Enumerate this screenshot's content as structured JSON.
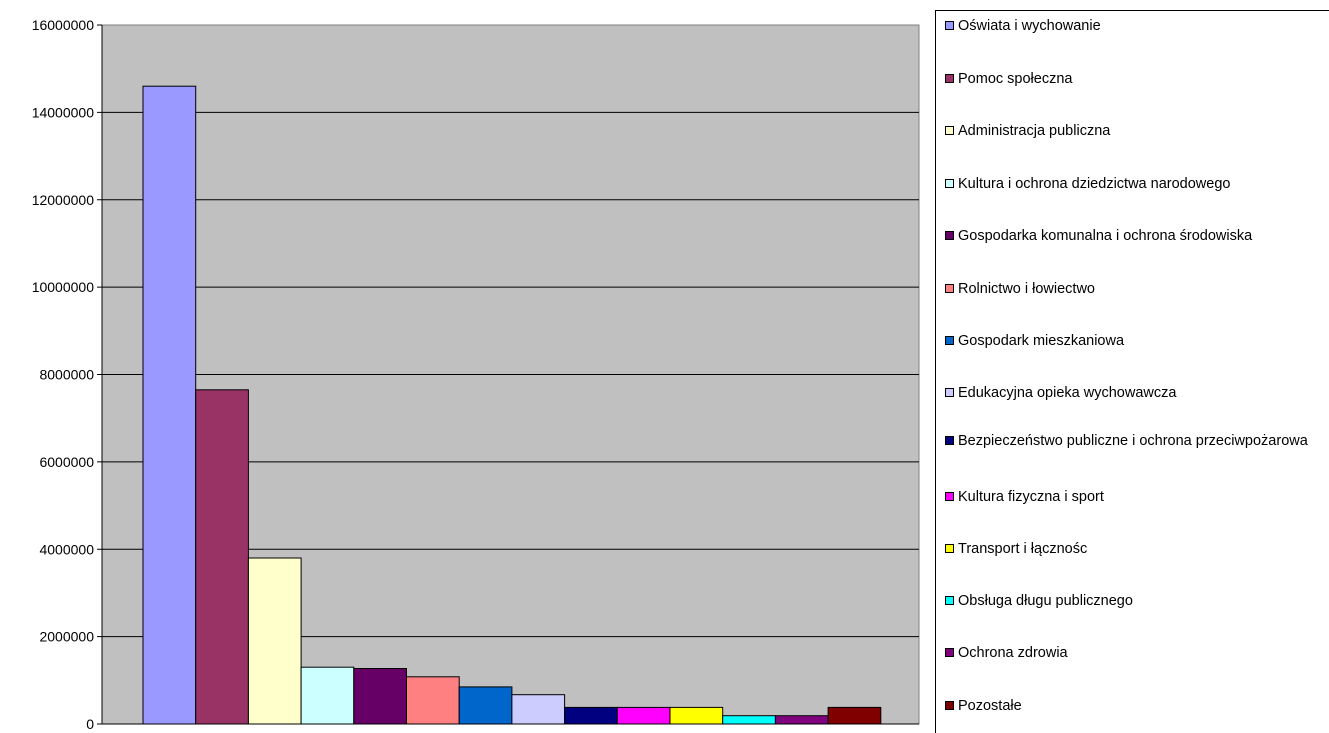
{
  "chart_data": {
    "type": "bar",
    "categories": [
      "Oświata i wychowanie",
      "Pomoc społeczna",
      "Administracja publiczna",
      "Kultura i ochrona dziedzictwa narodowego",
      "Gospodarka komunalna i ochrona środowiska",
      "Rolnictwo i łowiectwo",
      "Gospodark mieszkaniowa",
      "Edukacyjna opieka wychowawcza",
      "Bezpieczeństwo publiczne i ochrona przeciwpożarowa",
      "Kultura fizyczna i sport",
      "Transport i łącznośc",
      "Obsługa długu publicznego",
      "Ochrona zdrowia",
      "Pozostałe"
    ],
    "values": [
      14600000,
      7650000,
      3800000,
      1300000,
      1270000,
      1080000,
      850000,
      670000,
      380000,
      380000,
      380000,
      190000,
      190000,
      380000
    ],
    "colors": [
      "#9999ff",
      "#993366",
      "#ffffcc",
      "#ccffff",
      "#660066",
      "#ff8080",
      "#0066cc",
      "#ccccff",
      "#000080",
      "#ff00ff",
      "#ffff00",
      "#00ffff",
      "#800080",
      "#800000"
    ],
    "ylim": [
      0,
      16000000
    ],
    "yticks": [
      "0",
      "2000000",
      "4000000",
      "6000000",
      "8000000",
      "10000000",
      "12000000",
      "14000000",
      "16000000"
    ],
    "title": "",
    "xlabel": "",
    "ylabel": "",
    "grid": true,
    "plot_background": "#c0c0c0",
    "legend_position": "right"
  }
}
